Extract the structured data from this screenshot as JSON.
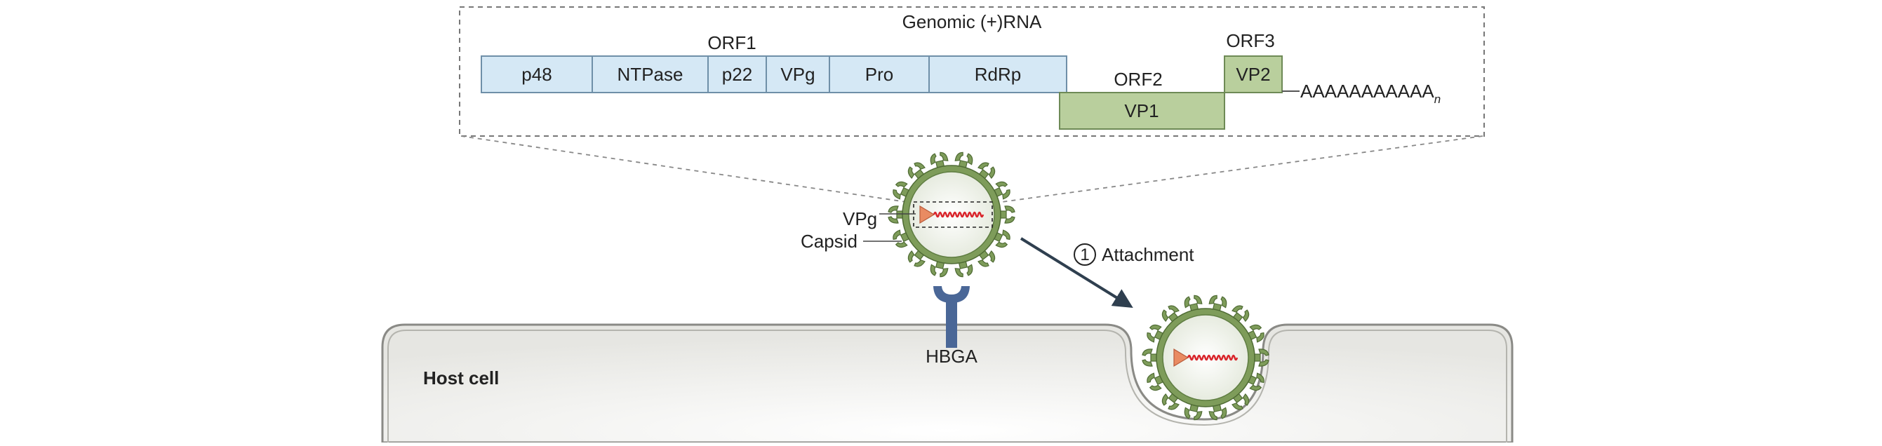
{
  "genome": {
    "title": "Genomic (+)RNA",
    "orf1_label": "ORF1",
    "orf1_genes": [
      "p48",
      "NTPase",
      "p22",
      "VPg",
      "Pro",
      "RdRp"
    ],
    "orf2_label": "ORF2",
    "orf2_gene": "VP1",
    "orf3_label": "ORF3",
    "orf3_gene": "VP2",
    "polyA": "AAAAAAAAAAA",
    "polyA_subscript": "n"
  },
  "virion": {
    "vpg_label": "VPg",
    "capsid_label": "Capsid"
  },
  "receptor": {
    "label": "HBGA"
  },
  "step": {
    "number": "1",
    "label": "Attachment"
  },
  "cell": {
    "label": "Host cell"
  },
  "colors": {
    "orf1_fill": "#d5e8f5",
    "orf1_stroke": "#6f8fa8",
    "orf23_fill": "#b9cf9d",
    "orf23_stroke": "#6e8a56",
    "capsid_green": "#7e9c5a",
    "capsid_dark": "#4f6b34",
    "receptor_blue": "#4a6797",
    "rna_red": "#d9262c",
    "vpg_orange": "#e98b62",
    "cell_fill": "#ecece8",
    "cell_stroke": "#8a8a86",
    "arrow": "#2f3f4f"
  }
}
